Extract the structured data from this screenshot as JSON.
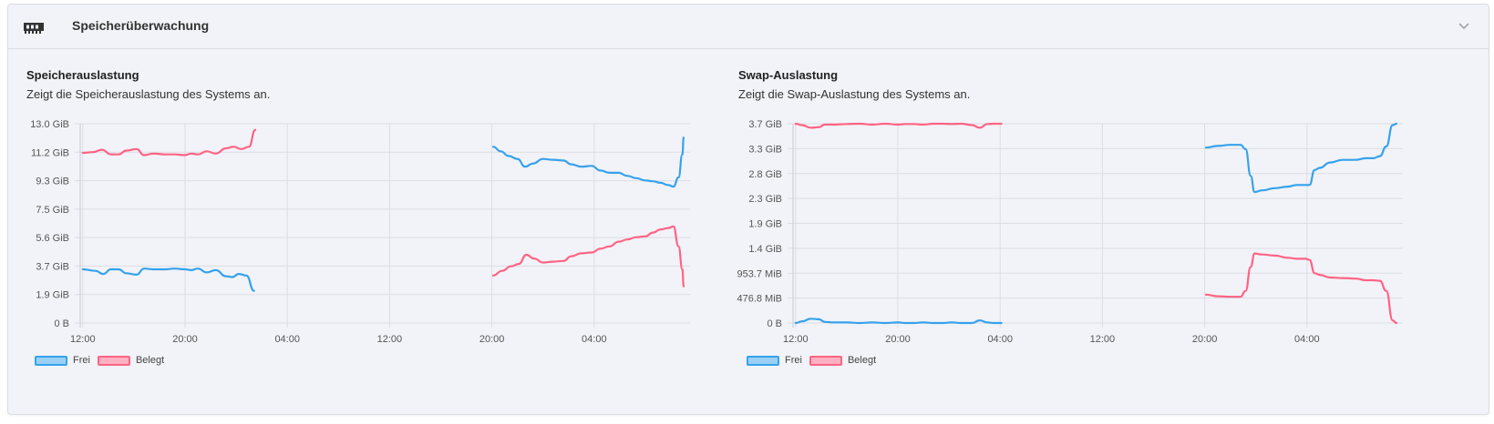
{
  "panel": {
    "title": "Speicherüberwachung",
    "icon": "memory-icon"
  },
  "colors": {
    "free": "#36a2eb",
    "used": "#ff6384",
    "free_fill": "#9ad0f5",
    "used_fill": "#ffb1c1"
  },
  "memory": {
    "title": "Speicherauslastung",
    "description": "Zeigt die Speicherauslastung des Systems an.",
    "legend": [
      "Frei",
      "Belegt"
    ]
  },
  "swap": {
    "title": "Swap-Auslastung",
    "description": "Zeigt die Swap-Auslastung des Systems an.",
    "legend": [
      "Frei",
      "Belegt"
    ]
  },
  "chart_data": [
    {
      "type": "line",
      "x_unit": "hours",
      "x_ticks": [
        "12:00",
        "20:00",
        "04:00",
        "12:00",
        "20:00",
        "04:00"
      ],
      "x_tick_values": [
        12,
        20,
        28,
        36,
        44,
        52
      ],
      "xlim": [
        11.8,
        59.5
      ],
      "y_ticks": [
        "0 B",
        "1.9 GiB",
        "3.7 GiB",
        "5.6 GiB",
        "7.5 GiB",
        "9.3 GiB",
        "11.2 GiB",
        "13.0 GiB"
      ],
      "ylim": [
        0,
        13.0
      ],
      "y_unit": "GiB",
      "series": [
        {
          "name": "Frei",
          "segments": [
            [
              [
                12,
                3.5
              ],
              [
                13,
                3.4
              ],
              [
                13.6,
                3.2
              ],
              [
                14.2,
                3.5
              ],
              [
                14.8,
                3.5
              ],
              [
                15.4,
                3.25
              ],
              [
                16.2,
                3.15
              ],
              [
                16.8,
                3.55
              ],
              [
                17.5,
                3.5
              ],
              [
                18.5,
                3.5
              ],
              [
                19.2,
                3.55
              ],
              [
                20,
                3.5
              ],
              [
                20.5,
                3.45
              ],
              [
                21,
                3.55
              ],
              [
                21.7,
                3.3
              ],
              [
                22.4,
                3.45
              ],
              [
                23.2,
                3.05
              ],
              [
                23.7,
                3.0
              ],
              [
                24.2,
                3.2
              ],
              [
                24.8,
                3.1
              ],
              [
                25.4,
                2.1
              ]
            ],
            [
              [
                44.1,
                11.5
              ],
              [
                44.7,
                11.2
              ],
              [
                45.3,
                10.9
              ],
              [
                46,
                10.7
              ],
              [
                46.6,
                10.2
              ],
              [
                47.2,
                10.4
              ],
              [
                48,
                10.7
              ],
              [
                48.8,
                10.65
              ],
              [
                49.6,
                10.6
              ],
              [
                50.2,
                10.35
              ],
              [
                51,
                10.2
              ],
              [
                51.8,
                10.25
              ],
              [
                52.5,
                9.95
              ],
              [
                53.2,
                9.8
              ],
              [
                53.9,
                9.8
              ],
              [
                54.6,
                9.6
              ],
              [
                55.3,
                9.45
              ],
              [
                56,
                9.3
              ],
              [
                56.6,
                9.25
              ],
              [
                57.2,
                9.15
              ],
              [
                57.8,
                9.0
              ],
              [
                58.2,
                8.9
              ],
              [
                58.6,
                9.5
              ],
              [
                58.9,
                11.0
              ],
              [
                59.0,
                12.1
              ]
            ]
          ]
        },
        {
          "name": "Belegt",
          "segments": [
            [
              [
                12,
                11.1
              ],
              [
                12.8,
                11.15
              ],
              [
                13.5,
                11.3
              ],
              [
                14.2,
                11.0
              ],
              [
                14.8,
                11.0
              ],
              [
                15.4,
                11.25
              ],
              [
                16.2,
                11.35
              ],
              [
                16.8,
                10.95
              ],
              [
                17.5,
                11.05
              ],
              [
                18.5,
                11.0
              ],
              [
                19.2,
                11.0
              ],
              [
                20,
                10.95
              ],
              [
                20.5,
                11.05
              ],
              [
                21,
                11.0
              ],
              [
                21.7,
                11.2
              ],
              [
                22.4,
                11.05
              ],
              [
                23.2,
                11.4
              ],
              [
                23.8,
                11.5
              ],
              [
                24.4,
                11.35
              ],
              [
                25,
                11.5
              ],
              [
                25.5,
                12.6
              ]
            ],
            [
              [
                44.1,
                3.1
              ],
              [
                44.8,
                3.4
              ],
              [
                45.5,
                3.7
              ],
              [
                46.1,
                3.85
              ],
              [
                46.7,
                4.45
              ],
              [
                47.3,
                4.2
              ],
              [
                48,
                3.95
              ],
              [
                48.8,
                4.0
              ],
              [
                49.6,
                4.05
              ],
              [
                50.2,
                4.35
              ],
              [
                51,
                4.55
              ],
              [
                51.8,
                4.6
              ],
              [
                52.5,
                4.85
              ],
              [
                53.2,
                5.0
              ],
              [
                53.9,
                5.3
              ],
              [
                54.6,
                5.45
              ],
              [
                55.3,
                5.6
              ],
              [
                56,
                5.65
              ],
              [
                56.6,
                5.9
              ],
              [
                57.2,
                6.1
              ],
              [
                57.8,
                6.2
              ],
              [
                58.2,
                6.3
              ],
              [
                58.6,
                5.0
              ],
              [
                58.9,
                3.5
              ],
              [
                59.0,
                2.4
              ]
            ]
          ]
        }
      ]
    },
    {
      "type": "line",
      "x_unit": "hours",
      "x_ticks": [
        "12:00",
        "20:00",
        "04:00",
        "12:00",
        "20:00",
        "04:00"
      ],
      "x_tick_values": [
        12,
        20,
        28,
        36,
        44,
        52
      ],
      "xlim": [
        11.8,
        59.5
      ],
      "y_ticks": [
        "0 B",
        "476.8 MiB",
        "953.7 MiB",
        "1.4 GiB",
        "1.9 GiB",
        "2.3 GiB",
        "2.8 GiB",
        "3.3 GiB",
        "3.7 GiB"
      ],
      "ylim": [
        0,
        3.725
      ],
      "y_unit": "GiB",
      "series": [
        {
          "name": "Frei",
          "segments": [
            [
              [
                12,
                0.0
              ],
              [
                12.5,
                0.03
              ],
              [
                13.2,
                0.08
              ],
              [
                13.8,
                0.07
              ],
              [
                14.3,
                0.02
              ],
              [
                15,
                0.01
              ],
              [
                16,
                0.01
              ],
              [
                17,
                0.0
              ],
              [
                18,
                0.01
              ],
              [
                19,
                0.0
              ],
              [
                20,
                0.01
              ],
              [
                20.6,
                0.0
              ],
              [
                21.2,
                0.0
              ],
              [
                22,
                0.01
              ],
              [
                22.8,
                0.0
              ],
              [
                23.5,
                0.0
              ],
              [
                24.2,
                0.01
              ],
              [
                25,
                0.0
              ],
              [
                25.8,
                0.0
              ],
              [
                26.4,
                0.05
              ],
              [
                27,
                0.01
              ],
              [
                27.5,
                0.0
              ],
              [
                28.1,
                0.0
              ]
            ],
            [
              [
                44.1,
                3.28
              ],
              [
                45,
                3.31
              ],
              [
                46,
                3.33
              ],
              [
                46.8,
                3.33
              ],
              [
                47.2,
                3.25
              ],
              [
                47.6,
                2.75
              ],
              [
                47.9,
                2.45
              ],
              [
                48.5,
                2.48
              ],
              [
                49.5,
                2.52
              ],
              [
                50.5,
                2.55
              ],
              [
                51.2,
                2.58
              ],
              [
                51.9,
                2.58
              ],
              [
                52.2,
                2.58
              ],
              [
                52.6,
                2.86
              ],
              [
                53,
                2.9
              ],
              [
                53.8,
                3.0
              ],
              [
                54.8,
                3.05
              ],
              [
                55.8,
                3.05
              ],
              [
                56.6,
                3.08
              ],
              [
                57.2,
                3.08
              ],
              [
                57.7,
                3.12
              ],
              [
                58.2,
                3.3
              ],
              [
                58.7,
                3.7
              ],
              [
                59.0,
                3.725
              ]
            ]
          ]
        },
        {
          "name": "Belegt",
          "segments": [
            [
              [
                12,
                3.725
              ],
              [
                12.5,
                3.7
              ],
              [
                13.2,
                3.65
              ],
              [
                13.8,
                3.66
              ],
              [
                14.3,
                3.71
              ],
              [
                15,
                3.71
              ],
              [
                16,
                3.72
              ],
              [
                17,
                3.725
              ],
              [
                18,
                3.71
              ],
              [
                19,
                3.725
              ],
              [
                20,
                3.71
              ],
              [
                20.6,
                3.72
              ],
              [
                21.2,
                3.72
              ],
              [
                22,
                3.71
              ],
              [
                22.8,
                3.725
              ],
              [
                23.5,
                3.725
              ],
              [
                24.2,
                3.72
              ],
              [
                25,
                3.725
              ],
              [
                25.8,
                3.7
              ],
              [
                26.4,
                3.65
              ],
              [
                27,
                3.72
              ],
              [
                27.5,
                3.725
              ],
              [
                28.1,
                3.725
              ]
            ],
            [
              [
                44.1,
                0.53
              ],
              [
                45,
                0.5
              ],
              [
                46,
                0.49
              ],
              [
                46.8,
                0.49
              ],
              [
                47.2,
                0.6
              ],
              [
                47.6,
                1.05
              ],
              [
                47.9,
                1.3
              ],
              [
                48.5,
                1.28
              ],
              [
                49.5,
                1.26
              ],
              [
                50.5,
                1.22
              ],
              [
                51.2,
                1.2
              ],
              [
                51.9,
                1.2
              ],
              [
                52.2,
                1.18
              ],
              [
                52.6,
                0.93
              ],
              [
                53,
                0.9
              ],
              [
                53.8,
                0.85
              ],
              [
                54.8,
                0.84
              ],
              [
                55.8,
                0.83
              ],
              [
                56.6,
                0.8
              ],
              [
                57.2,
                0.8
              ],
              [
                57.7,
                0.79
              ],
              [
                58.2,
                0.6
              ],
              [
                58.7,
                0.05
              ],
              [
                59.0,
                0.0
              ]
            ]
          ]
        }
      ]
    }
  ]
}
